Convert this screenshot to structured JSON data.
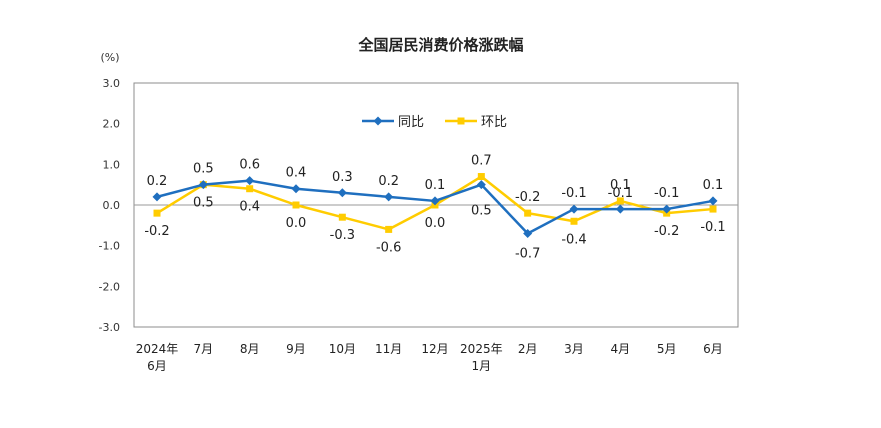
{
  "chart_data": {
    "type": "line",
    "title": "全国居民消费价格涨跌幅",
    "unit_label": "(%)",
    "xlabel": "",
    "ylabel": "",
    "categories": [
      [
        "2024年",
        "6月"
      ],
      [
        "7月"
      ],
      [
        "8月"
      ],
      [
        "9月"
      ],
      [
        "10月"
      ],
      [
        "11月"
      ],
      [
        "12月"
      ],
      [
        "2025年",
        "1月"
      ],
      [
        "2月"
      ],
      [
        "3月"
      ],
      [
        "4月"
      ],
      [
        "5月"
      ],
      [
        "6月"
      ]
    ],
    "series": [
      {
        "name": "同比",
        "color": "#1f6fbf",
        "values": [
          0.2,
          0.5,
          0.6,
          0.4,
          0.3,
          0.2,
          0.1,
          0.5,
          -0.7,
          -0.1,
          -0.1,
          -0.1,
          0.1
        ],
        "labels": [
          "0.2",
          "0.5",
          "0.6",
          "0.4",
          "0.3",
          "0.2",
          "0.1",
          "0.5",
          "-0.7",
          "-0.1",
          "-0.1",
          "-0.1",
          "0.1"
        ]
      },
      {
        "name": "环比",
        "color": "#ffcc00",
        "values": [
          -0.2,
          0.5,
          0.4,
          0.0,
          -0.3,
          -0.6,
          0.0,
          0.7,
          -0.2,
          -0.4,
          0.1,
          -0.2,
          -0.1
        ],
        "labels": [
          "-0.2",
          "0.5",
          "0.4",
          "0.0",
          "-0.3",
          "-0.6",
          "0.0",
          "0.7",
          "-0.2",
          "-0.4",
          "0.1",
          "-0.2",
          "-0.1"
        ]
      }
    ],
    "ylim": [
      -3.0,
      3.0
    ],
    "yticks": [
      "3.0",
      "2.0",
      "1.0",
      "0.0",
      "-1.0",
      "-2.0",
      "-3.0"
    ],
    "grid": false,
    "legend_position": "top-center"
  }
}
